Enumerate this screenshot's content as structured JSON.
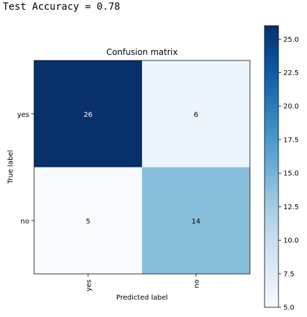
{
  "header": {
    "accuracy_text": "Test Accuracy = 0.78"
  },
  "chart_data": {
    "type": "heatmap",
    "title": "Confusion matrix",
    "xlabel": "Predicted label",
    "ylabel": "True label",
    "x_categories": [
      "yes",
      "no"
    ],
    "y_categories": [
      "yes",
      "no"
    ],
    "values": [
      [
        26,
        6
      ],
      [
        5,
        14
      ]
    ],
    "colormap": "Blues",
    "colorbar": {
      "min": 5,
      "max": 26,
      "ticks": [
        "5.0",
        "7.5",
        "10.0",
        "12.5",
        "15.0",
        "17.5",
        "20.0",
        "22.5",
        "25.0"
      ]
    },
    "colors": {
      "low": "#f7fbff",
      "mid_low": "#c6dbef",
      "mid": "#6baed6",
      "mid_high": "#2171b5",
      "high": "#08306b",
      "text_on_dark": "#ffffff",
      "text_on_light": "#000000"
    }
  }
}
